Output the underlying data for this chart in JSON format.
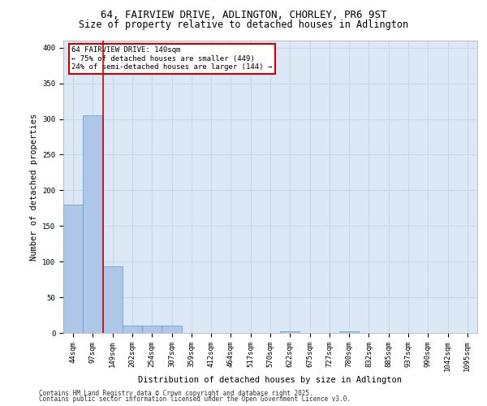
{
  "title1": "64, FAIRVIEW DRIVE, ADLINGTON, CHORLEY, PR6 9ST",
  "title2": "Size of property relative to detached houses in Adlington",
  "xlabel": "Distribution of detached houses by size in Adlington",
  "ylabel": "Number of detached properties",
  "categories": [
    "44sqm",
    "97sqm",
    "149sqm",
    "202sqm",
    "254sqm",
    "307sqm",
    "359sqm",
    "412sqm",
    "464sqm",
    "517sqm",
    "570sqm",
    "622sqm",
    "675sqm",
    "727sqm",
    "780sqm",
    "832sqm",
    "885sqm",
    "937sqm",
    "990sqm",
    "1042sqm",
    "1095sqm"
  ],
  "values": [
    180,
    305,
    93,
    10,
    10,
    10,
    0,
    0,
    0,
    0,
    0,
    2,
    0,
    0,
    2,
    0,
    0,
    0,
    0,
    0,
    0
  ],
  "bar_color": "#aec6e8",
  "bar_edge_color": "#5b9bd5",
  "annotation_line1": "64 FAIRVIEW DRIVE: 140sqm",
  "annotation_line2": "← 75% of detached houses are smaller (449)",
  "annotation_line3": "24% of semi-detached houses are larger (144) →",
  "vline_color": "#cc0000",
  "annotation_box_color": "#cc0000",
  "annotation_text_color": "#000000",
  "annotation_bg": "#ffffff",
  "ylim": [
    0,
    410
  ],
  "grid_color": "#c8d8e8",
  "plot_bg": "#dce8f5",
  "footer1": "Contains HM Land Registry data © Crown copyright and database right 2025.",
  "footer2": "Contains public sector information licensed under the Open Government Licence v3.0.",
  "title_fontsize": 9,
  "subtitle_fontsize": 8.5,
  "axis_label_fontsize": 7.5,
  "tick_fontsize": 6.5,
  "annotation_fontsize": 6.5,
  "footer_fontsize": 5.5
}
